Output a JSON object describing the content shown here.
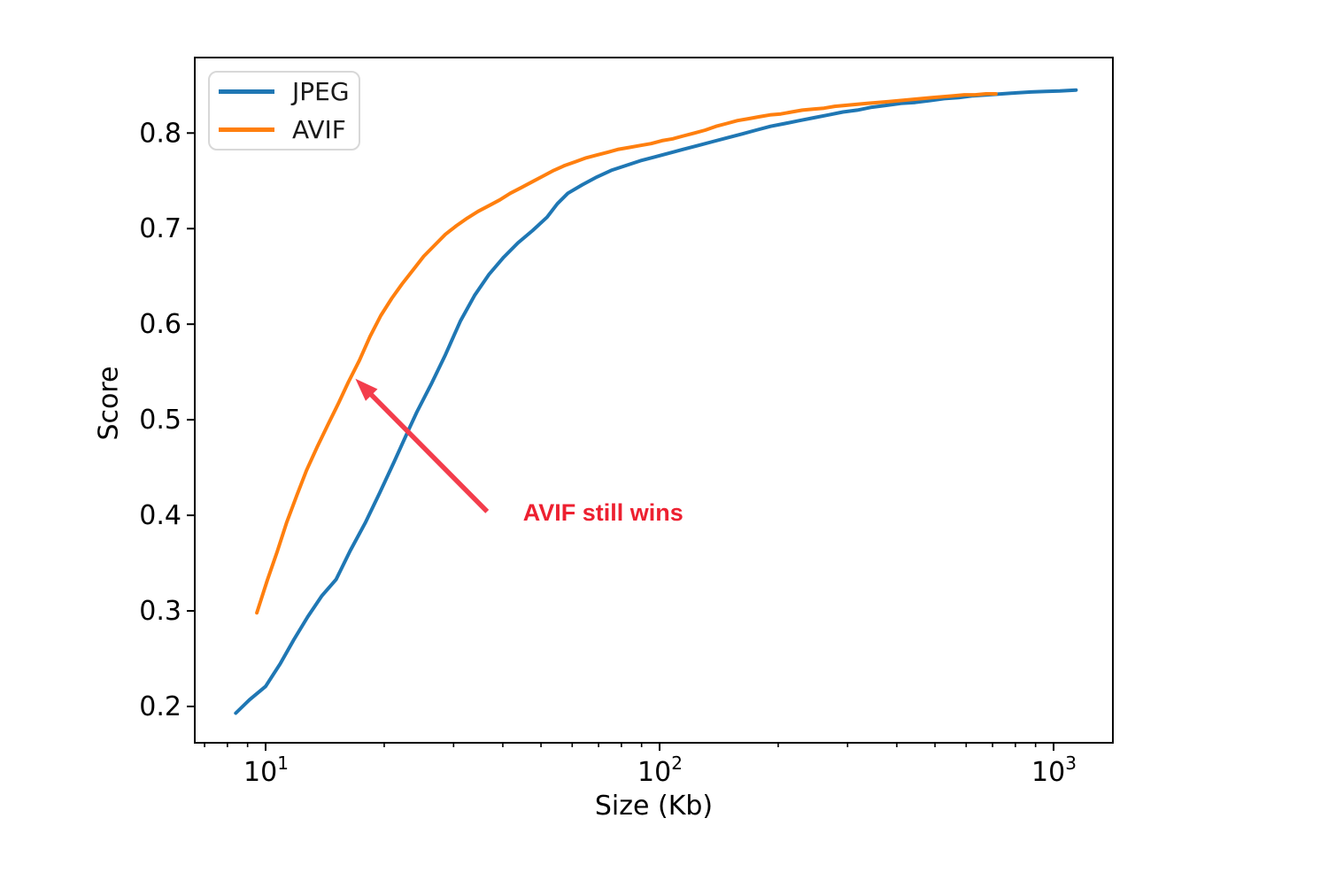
{
  "figure": {
    "background": "#ffffff",
    "spine_color": "#000000",
    "tick_label_color": "#000000"
  },
  "chart_data": {
    "type": "line",
    "title": "",
    "xlabel": "Size (Kb)",
    "ylabel": "Score",
    "x_scale": "log",
    "x_range": [
      6.61,
      1414
    ],
    "y_range": [
      0.162,
      0.879
    ],
    "grid": false,
    "x_ticks": [
      {
        "value": 10,
        "base": "10",
        "exp": "1"
      },
      {
        "value": 100,
        "base": "10",
        "exp": "2"
      },
      {
        "value": 1000,
        "base": "10",
        "exp": "3"
      }
    ],
    "x_minor_ticks": [
      7,
      8,
      9,
      20,
      30,
      40,
      50,
      60,
      70,
      80,
      90,
      200,
      300,
      400,
      500,
      600,
      700,
      800,
      900
    ],
    "y_ticks": [
      {
        "value": 0.2,
        "label": "0.2"
      },
      {
        "value": 0.3,
        "label": "0.3"
      },
      {
        "value": 0.4,
        "label": "0.4"
      },
      {
        "value": 0.5,
        "label": "0.5"
      },
      {
        "value": 0.6,
        "label": "0.6"
      },
      {
        "value": 0.7,
        "label": "0.7"
      },
      {
        "value": 0.8,
        "label": "0.8"
      }
    ],
    "legend": {
      "position": "upper left",
      "entries": [
        "JPEG",
        "AVIF"
      ]
    },
    "series": [
      {
        "name": "JPEG",
        "color": "#1f77b4",
        "points": [
          [
            8.4,
            0.193
          ],
          [
            9.1,
            0.207
          ],
          [
            10,
            0.221
          ],
          [
            10.9,
            0.245
          ],
          [
            11.8,
            0.27
          ],
          [
            12.8,
            0.294
          ],
          [
            13.9,
            0.316
          ],
          [
            15.1,
            0.333
          ],
          [
            16.4,
            0.363
          ],
          [
            17.9,
            0.392
          ],
          [
            19.5,
            0.424
          ],
          [
            21.2,
            0.456
          ],
          [
            23.1,
            0.49
          ],
          [
            24.2,
            0.508
          ],
          [
            26.3,
            0.537
          ],
          [
            28.6,
            0.568
          ],
          [
            31.2,
            0.603
          ],
          [
            33.9,
            0.63
          ],
          [
            36.9,
            0.652
          ],
          [
            40.2,
            0.67
          ],
          [
            43.7,
            0.685
          ],
          [
            47.6,
            0.698
          ],
          [
            51.8,
            0.712
          ],
          [
            55.0,
            0.726
          ],
          [
            58.5,
            0.737
          ],
          [
            63.7,
            0.746
          ],
          [
            69.3,
            0.754
          ],
          [
            75.4,
            0.761
          ],
          [
            82.1,
            0.766
          ],
          [
            89.3,
            0.771
          ],
          [
            97.2,
            0.775
          ],
          [
            105.8,
            0.779
          ],
          [
            115.1,
            0.783
          ],
          [
            125.3,
            0.787
          ],
          [
            136.3,
            0.791
          ],
          [
            148.4,
            0.795
          ],
          [
            161.5,
            0.799
          ],
          [
            175.7,
            0.803
          ],
          [
            191.2,
            0.807
          ],
          [
            208.1,
            0.81
          ],
          [
            226.5,
            0.813
          ],
          [
            246.4,
            0.816
          ],
          [
            268.2,
            0.819
          ],
          [
            291.9,
            0.822
          ],
          [
            317.6,
            0.824
          ],
          [
            345.6,
            0.827
          ],
          [
            376.1,
            0.829
          ],
          [
            409.3,
            0.831
          ],
          [
            445.4,
            0.832
          ],
          [
            484.7,
            0.834
          ],
          [
            527.5,
            0.836
          ],
          [
            574.0,
            0.837
          ],
          [
            624.6,
            0.839
          ],
          [
            679.7,
            0.84
          ],
          [
            739.7,
            0.841
          ],
          [
            805.0,
            0.842
          ],
          [
            876.0,
            0.843
          ],
          [
            953.3,
            0.8435
          ],
          [
            1037.4,
            0.844
          ],
          [
            1140.0,
            0.845
          ]
        ]
      },
      {
        "name": "AVIF",
        "color": "#ff7f0e",
        "points": [
          [
            9.5,
            0.298
          ],
          [
            10.1,
            0.332
          ],
          [
            10.7,
            0.362
          ],
          [
            11.3,
            0.392
          ],
          [
            12.0,
            0.421
          ],
          [
            12.7,
            0.447
          ],
          [
            13.5,
            0.471
          ],
          [
            14.4,
            0.495
          ],
          [
            15.3,
            0.517
          ],
          [
            16.2,
            0.539
          ],
          [
            17.3,
            0.562
          ],
          [
            18.4,
            0.587
          ],
          [
            19.6,
            0.609
          ],
          [
            20.9,
            0.627
          ],
          [
            22.2,
            0.642
          ],
          [
            23.7,
            0.657
          ],
          [
            25.2,
            0.671
          ],
          [
            26.9,
            0.683
          ],
          [
            28.6,
            0.694
          ],
          [
            30.5,
            0.703
          ],
          [
            32.5,
            0.711
          ],
          [
            34.6,
            0.718
          ],
          [
            36.9,
            0.724
          ],
          [
            39.3,
            0.73
          ],
          [
            41.8,
            0.737
          ],
          [
            44.6,
            0.743
          ],
          [
            47.5,
            0.749
          ],
          [
            50.6,
            0.755
          ],
          [
            53.9,
            0.761
          ],
          [
            57.4,
            0.766
          ],
          [
            61.1,
            0.77
          ],
          [
            65.1,
            0.774
          ],
          [
            69.4,
            0.777
          ],
          [
            73.9,
            0.78
          ],
          [
            78.7,
            0.783
          ],
          [
            83.9,
            0.785
          ],
          [
            89.3,
            0.787
          ],
          [
            95.2,
            0.789
          ],
          [
            101.4,
            0.792
          ],
          [
            108.0,
            0.794
          ],
          [
            115.0,
            0.797
          ],
          [
            122.5,
            0.8
          ],
          [
            130.5,
            0.803
          ],
          [
            139.0,
            0.807
          ],
          [
            148.1,
            0.81
          ],
          [
            157.7,
            0.813
          ],
          [
            168.0,
            0.815
          ],
          [
            179.0,
            0.817
          ],
          [
            190.6,
            0.819
          ],
          [
            203.0,
            0.82
          ],
          [
            216.3,
            0.822
          ],
          [
            230.4,
            0.824
          ],
          [
            245.4,
            0.825
          ],
          [
            261.4,
            0.826
          ],
          [
            278.4,
            0.828
          ],
          [
            296.5,
            0.829
          ],
          [
            315.8,
            0.83
          ],
          [
            336.4,
            0.831
          ],
          [
            358.3,
            0.832
          ],
          [
            381.6,
            0.833
          ],
          [
            406.5,
            0.834
          ],
          [
            433.0,
            0.835
          ],
          [
            461.2,
            0.836
          ],
          [
            491.2,
            0.837
          ],
          [
            523.2,
            0.838
          ],
          [
            557.2,
            0.839
          ],
          [
            593.5,
            0.84
          ],
          [
            632.2,
            0.84
          ],
          [
            673.3,
            0.841
          ],
          [
            714.0,
            0.841
          ]
        ]
      }
    ],
    "annotation": {
      "text": "AVIF still wins",
      "color": "#ed2030",
      "arrow_color": "#f33d4c",
      "text_at": [
        45.0,
        0.417
      ],
      "arrow_tail": [
        36.5,
        0.404
      ],
      "arrow_tip": [
        16.9,
        0.543
      ]
    }
  }
}
